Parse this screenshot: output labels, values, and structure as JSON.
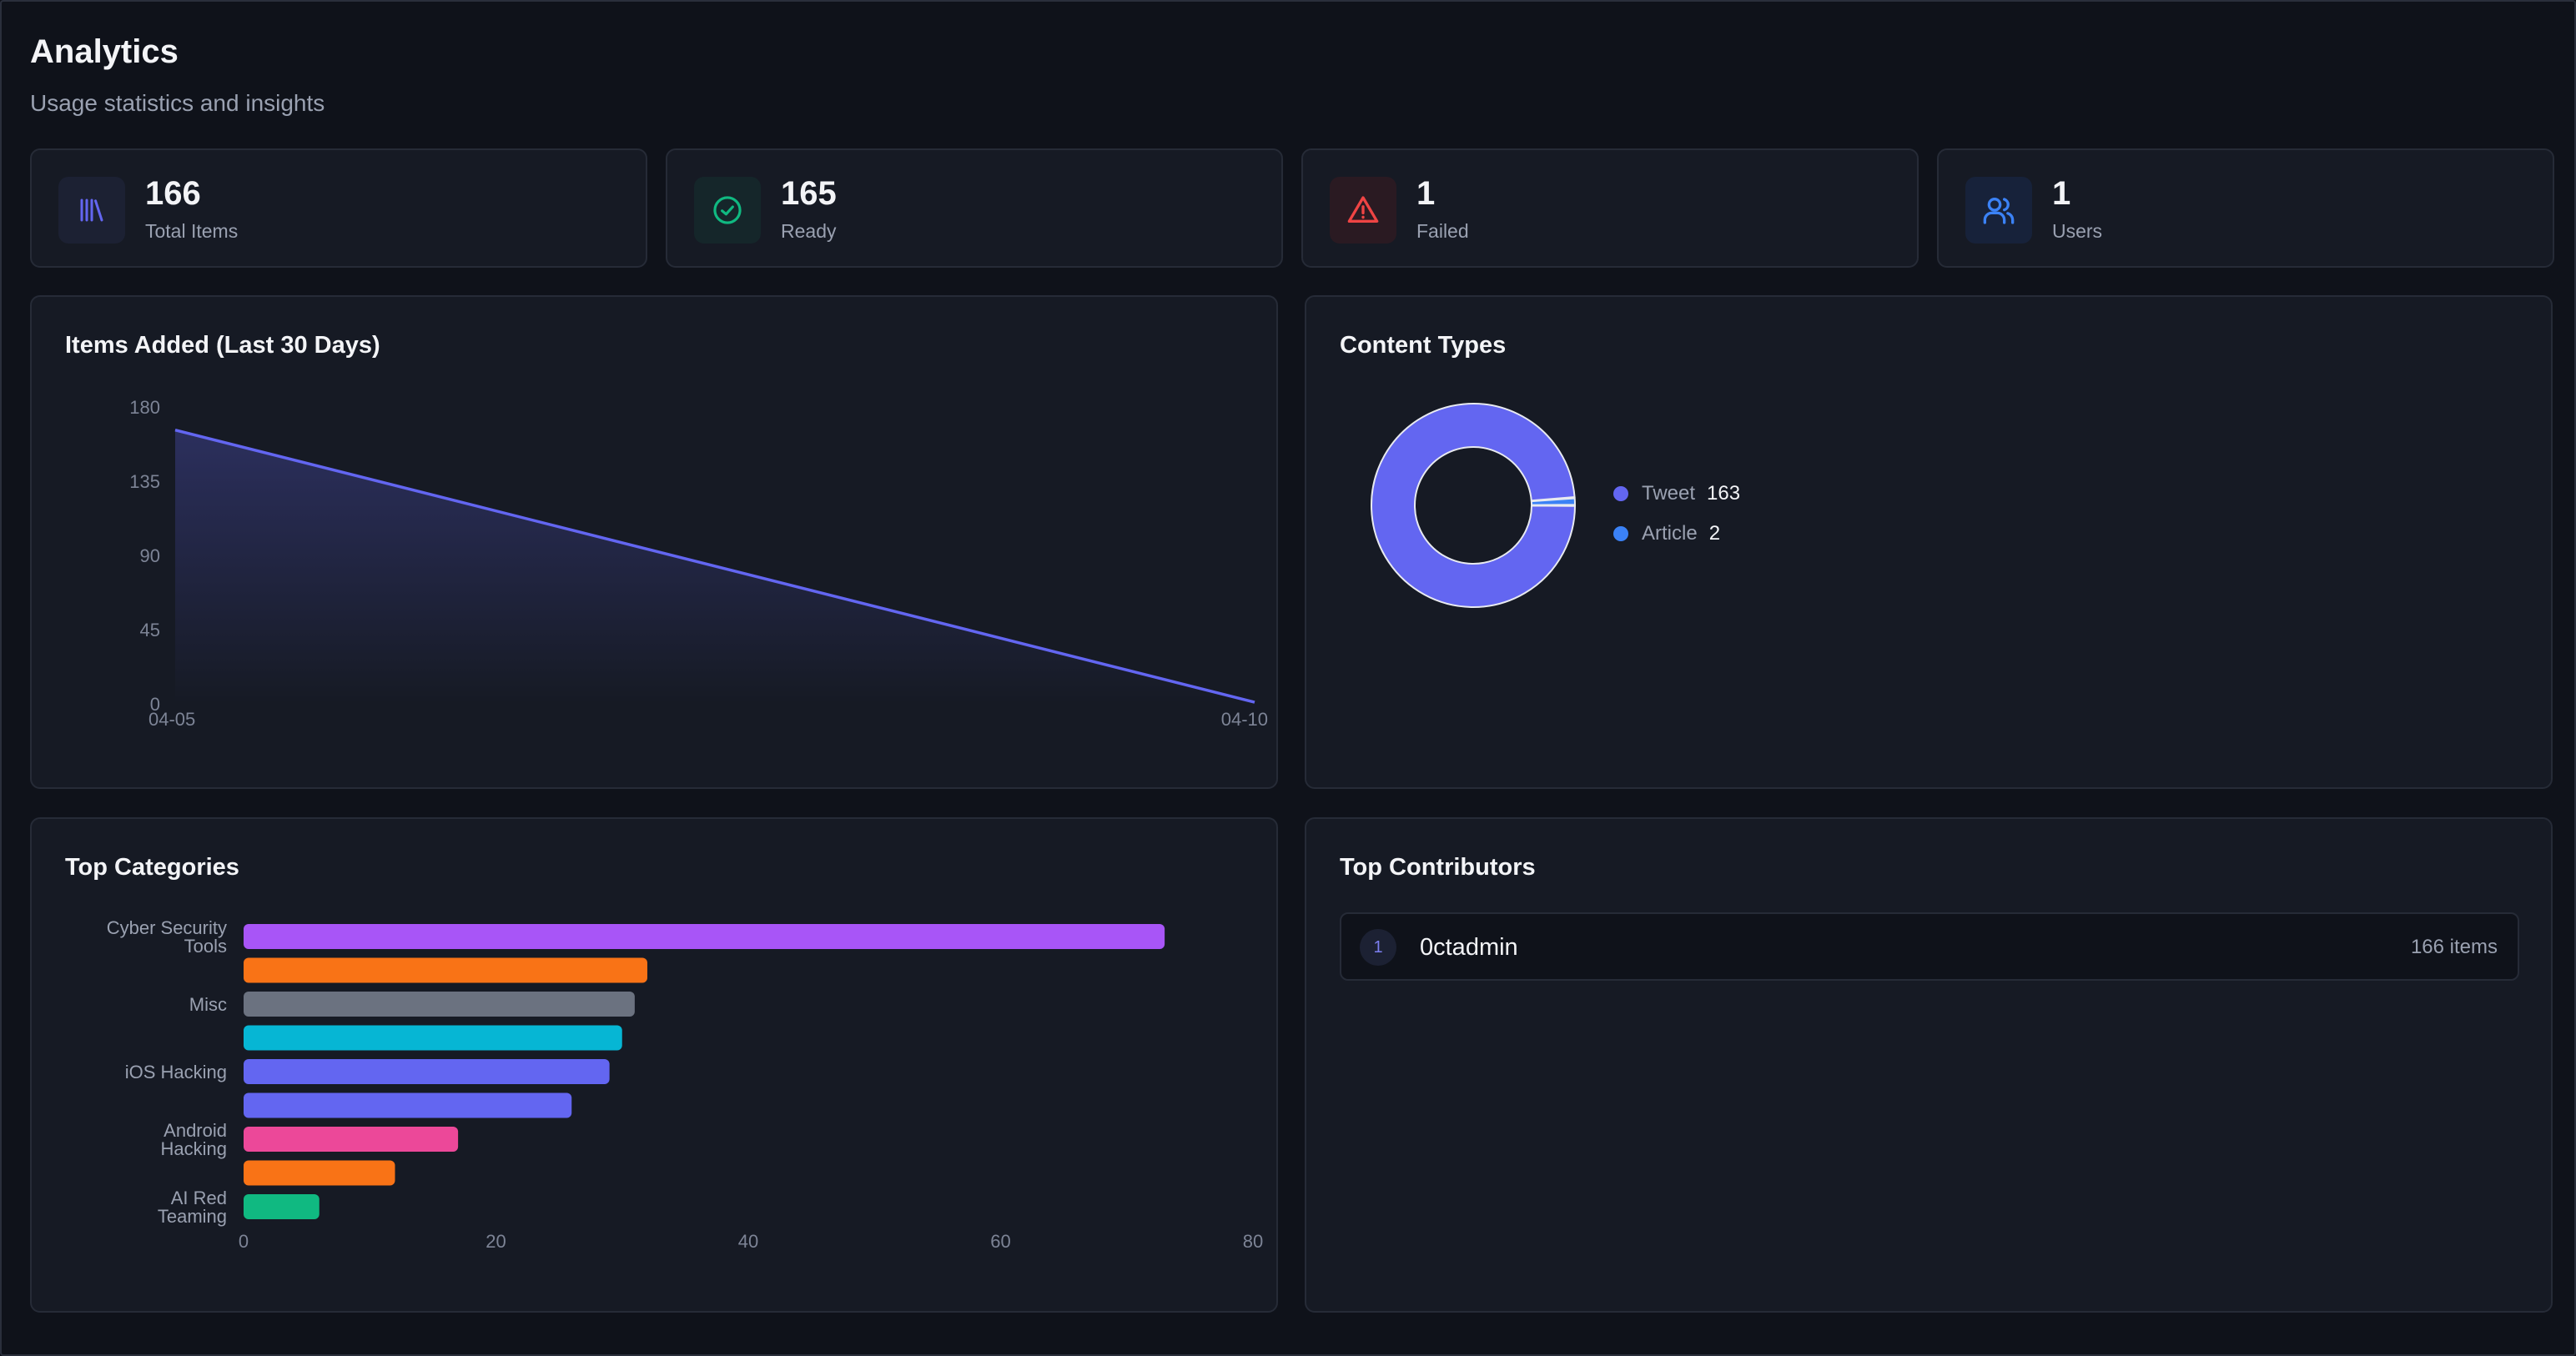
{
  "header": {
    "title": "Analytics",
    "subtitle": "Usage statistics and insights"
  },
  "stats": [
    {
      "value": "166",
      "label": "Total Items",
      "icon": "library-icon",
      "color": "#6366f1"
    },
    {
      "value": "165",
      "label": "Ready",
      "icon": "check-circle-icon",
      "color": "#10b981"
    },
    {
      "value": "1",
      "label": "Failed",
      "icon": "alert-triangle-icon",
      "color": "#ef4444"
    },
    {
      "value": "1",
      "label": "Users",
      "icon": "users-icon",
      "color": "#3b82f6"
    }
  ],
  "panels": {
    "items_added_title": "Items Added (Last 30 Days)",
    "content_types_title": "Content Types",
    "top_categories_title": "Top Categories",
    "top_contributors_title": "Top Contributors"
  },
  "content_types": [
    {
      "name": "Tweet",
      "value": "163",
      "color": "#6366f1"
    },
    {
      "name": "Article",
      "value": "2",
      "color": "#3b82f6"
    }
  ],
  "contributors": [
    {
      "rank": "1",
      "name": "0ctadmin",
      "count": "166 items"
    }
  ],
  "chart_data": [
    {
      "type": "area",
      "title": "Items Added (Last 30 Days)",
      "x": [
        "04-05",
        "04-10"
      ],
      "values": [
        166,
        1
      ],
      "ylim": [
        0,
        180
      ],
      "yticks": [
        0,
        45,
        90,
        135,
        180
      ],
      "color": "#6366f1"
    },
    {
      "type": "pie",
      "title": "Content Types",
      "labels": [
        "Tweet",
        "Article"
      ],
      "values": [
        163,
        2
      ],
      "colors": [
        "#6366f1",
        "#3b82f6"
      ],
      "donut": true
    },
    {
      "type": "bar",
      "orientation": "horizontal",
      "title": "Top Categories",
      "categories": [
        "Cyber Security Tools",
        "",
        "Misc",
        "",
        "iOS Hacking",
        "",
        "Android Hacking",
        "",
        "AI Red Teaming"
      ],
      "values": [
        73,
        32,
        31,
        30,
        29,
        26,
        17,
        12,
        6
      ],
      "colors": [
        "#a855f7",
        "#f97316",
        "#6b7280",
        "#06b6d4",
        "#6366f1",
        "#6366f1",
        "#ec4899",
        "#f97316",
        "#10b981"
      ],
      "xlim": [
        0,
        80
      ],
      "xticks": [
        0,
        20,
        40,
        60,
        80
      ]
    }
  ]
}
